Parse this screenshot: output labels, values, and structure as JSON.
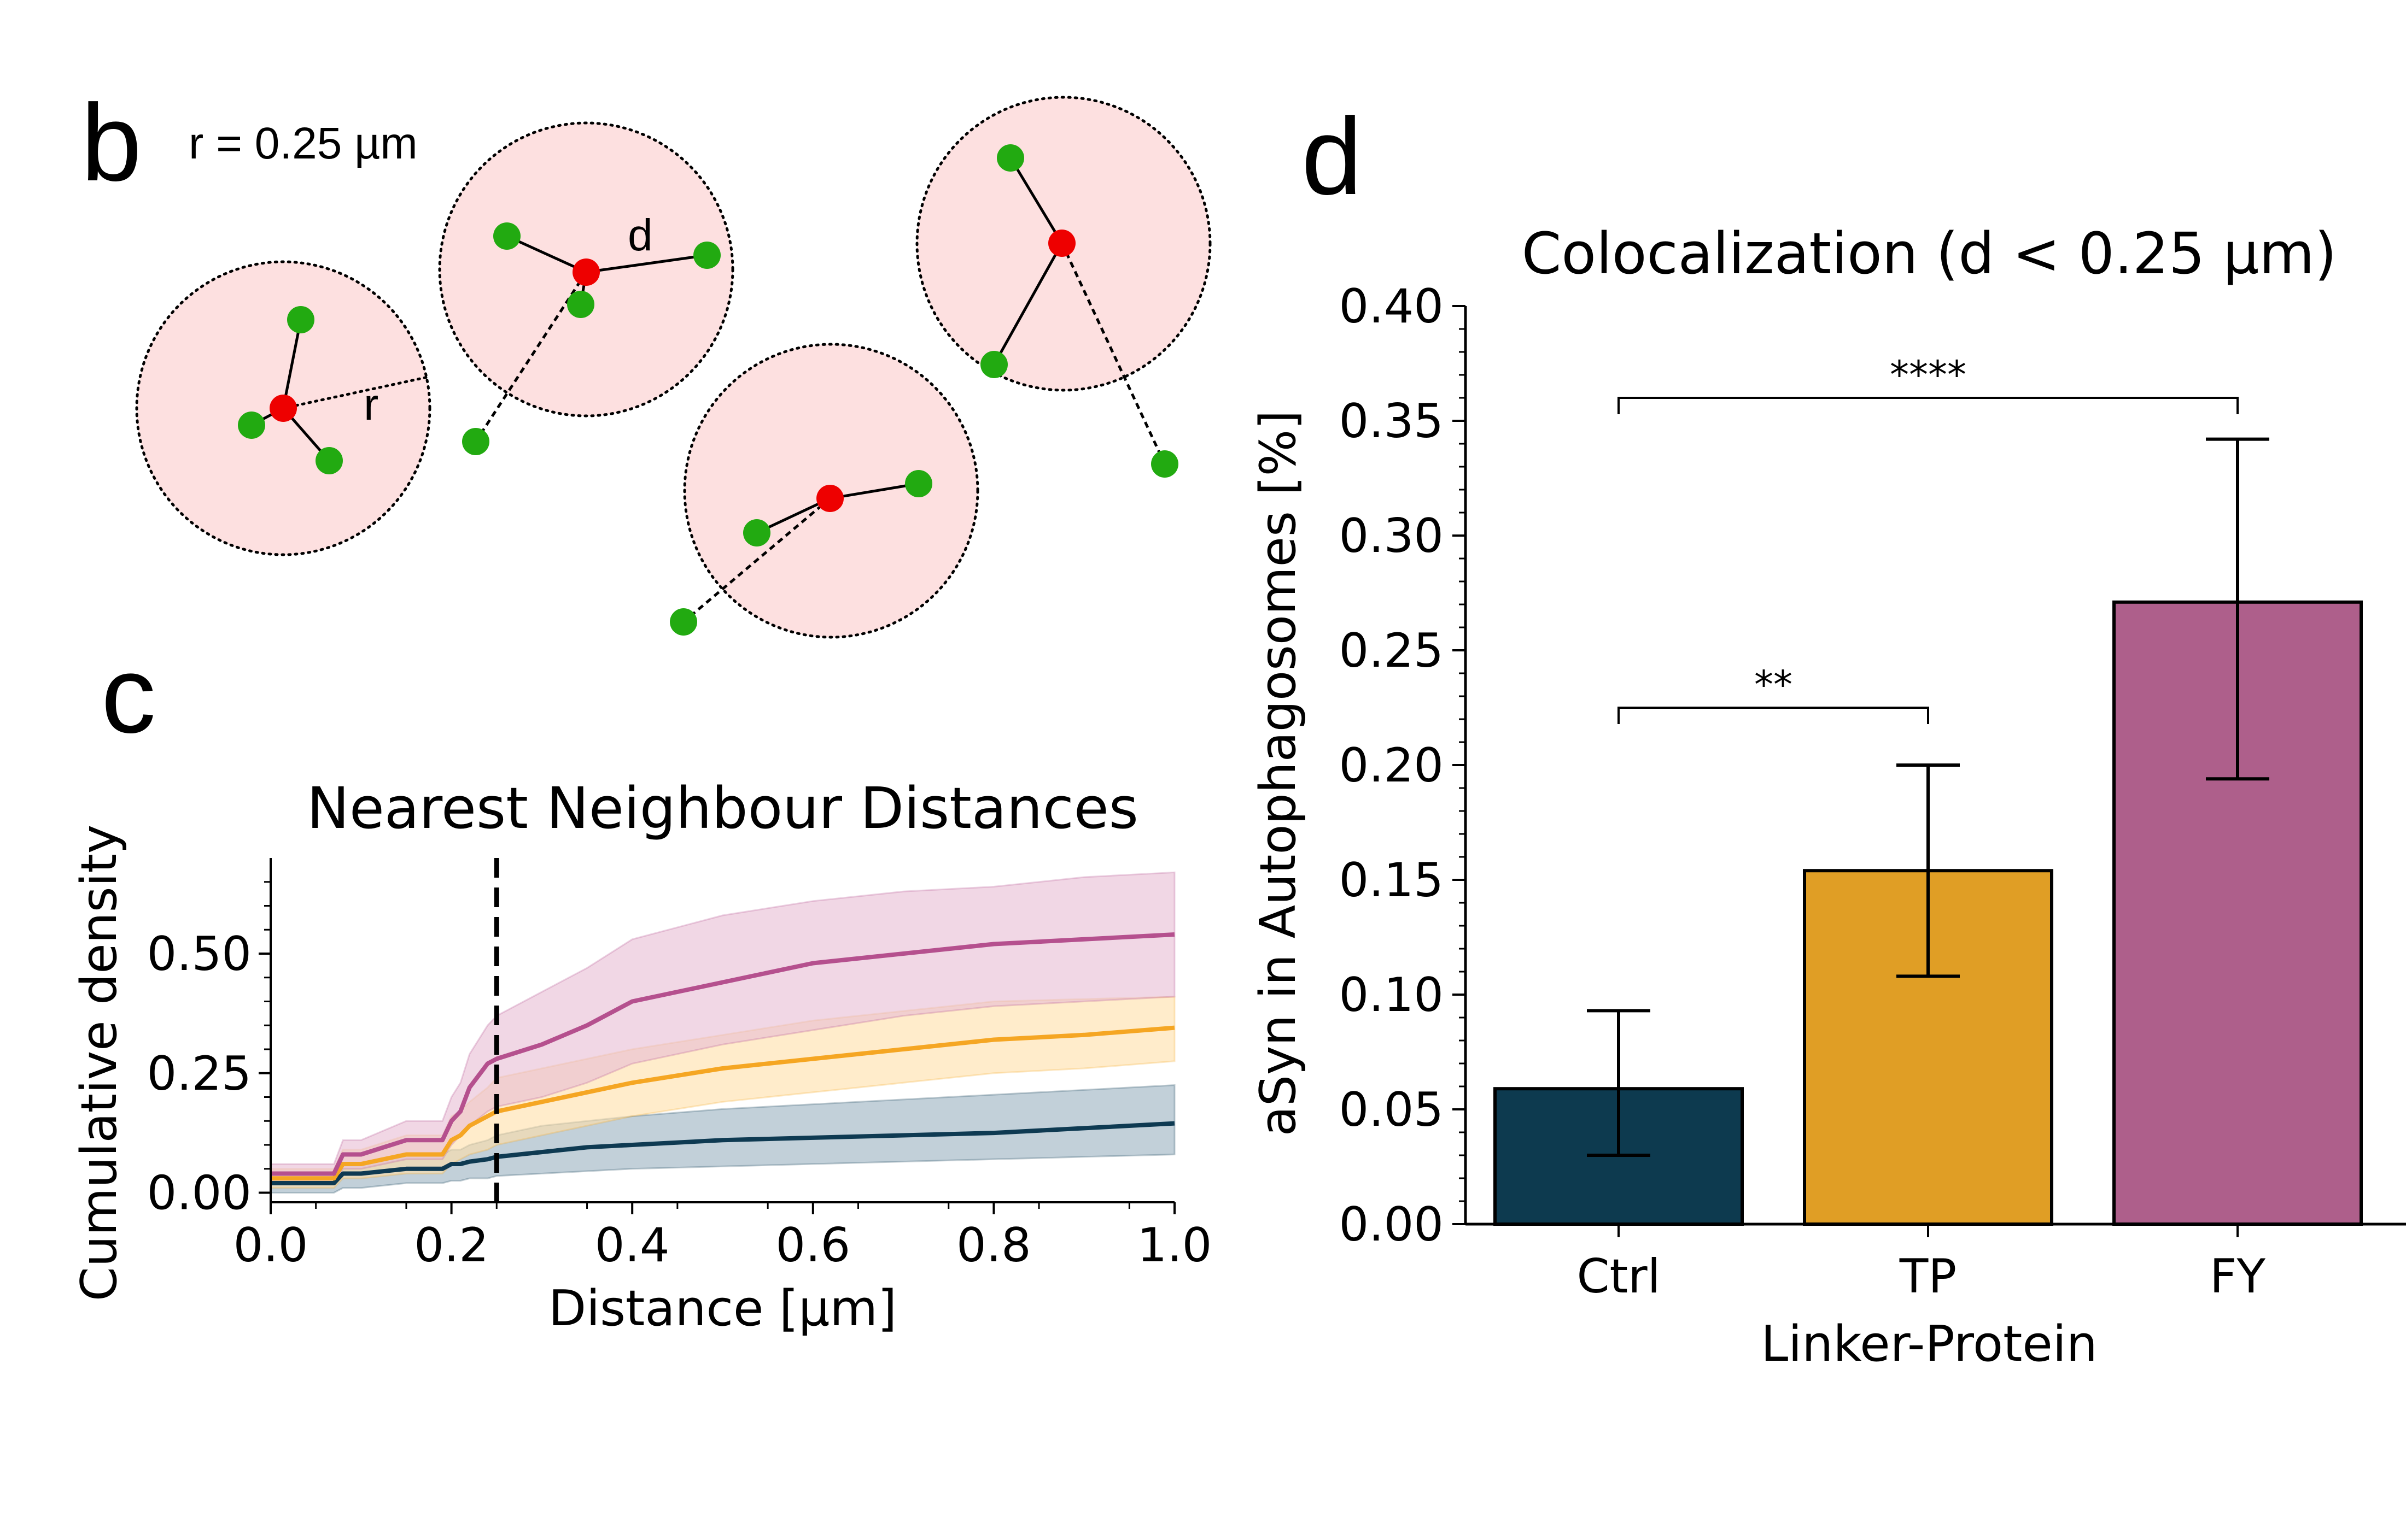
{
  "panels": {
    "b": {
      "letter": "b",
      "radius_label": "r = 0.25 µm",
      "d_label": "d",
      "r_label": "r",
      "colors": {
        "circle_fill": "#fde0e0",
        "center": "#ee0000",
        "neighbor": "#22aa11"
      }
    },
    "c": {
      "letter": "c"
    },
    "d": {
      "letter": "d"
    }
  },
  "chart_data": [
    {
      "id": "nearest-neighbour",
      "type": "line",
      "title": "Nearest Neighbour Distances",
      "xlabel": "Distance [µm]",
      "ylabel": "Cumulative density",
      "xlim": [
        0,
        1
      ],
      "ylim": [
        -0.02,
        0.7
      ],
      "xticks": [
        0,
        0.2,
        0.4,
        0.6,
        0.8,
        1
      ],
      "xtick_labels": [
        "0.0",
        "0.2",
        "0.4",
        "0.6",
        "0.8",
        "1.0"
      ],
      "yticks": [
        0,
        0.25,
        0.5
      ],
      "ytick_labels": [
        "0.00",
        "0.25",
        "0.50"
      ],
      "threshold": 0.25,
      "legend": false,
      "x": [
        0.0,
        0.07,
        0.08,
        0.1,
        0.15,
        0.19,
        0.2,
        0.21,
        0.22,
        0.24,
        0.25,
        0.3,
        0.35,
        0.4,
        0.5,
        0.6,
        0.7,
        0.8,
        0.9,
        1.0
      ],
      "series": [
        {
          "color": "#0e3a52",
          "band_color": "#9ab0c0",
          "values": [
            0.02,
            0.02,
            0.04,
            0.04,
            0.05,
            0.05,
            0.06,
            0.06,
            0.065,
            0.07,
            0.075,
            0.085,
            0.095,
            0.1,
            0.11,
            0.115,
            0.12,
            0.125,
            0.135,
            0.145
          ],
          "lower": [
            0.0,
            0.0,
            0.01,
            0.01,
            0.02,
            0.02,
            0.025,
            0.025,
            0.03,
            0.03,
            0.035,
            0.04,
            0.045,
            0.05,
            0.055,
            0.06,
            0.065,
            0.07,
            0.075,
            0.08
          ],
          "upper": [
            0.04,
            0.04,
            0.06,
            0.06,
            0.08,
            0.08,
            0.09,
            0.09,
            0.1,
            0.11,
            0.12,
            0.14,
            0.15,
            0.16,
            0.175,
            0.185,
            0.195,
            0.205,
            0.215,
            0.225
          ]
        },
        {
          "color": "#f5a623",
          "band_color": "#ffe0a8",
          "values": [
            0.03,
            0.03,
            0.06,
            0.06,
            0.08,
            0.08,
            0.11,
            0.12,
            0.14,
            0.16,
            0.17,
            0.19,
            0.21,
            0.23,
            0.26,
            0.28,
            0.3,
            0.32,
            0.33,
            0.345
          ],
          "lower": [
            0.01,
            0.01,
            0.03,
            0.03,
            0.04,
            0.04,
            0.06,
            0.07,
            0.08,
            0.09,
            0.1,
            0.12,
            0.14,
            0.16,
            0.19,
            0.21,
            0.23,
            0.25,
            0.26,
            0.275
          ],
          "upper": [
            0.05,
            0.05,
            0.09,
            0.09,
            0.12,
            0.12,
            0.16,
            0.17,
            0.19,
            0.22,
            0.24,
            0.26,
            0.28,
            0.3,
            0.33,
            0.36,
            0.38,
            0.4,
            0.405,
            0.41
          ]
        },
        {
          "color": "#b5508e",
          "band_color": "#e8bcd4",
          "values": [
            0.04,
            0.04,
            0.08,
            0.08,
            0.11,
            0.11,
            0.15,
            0.17,
            0.22,
            0.27,
            0.28,
            0.31,
            0.35,
            0.4,
            0.44,
            0.48,
            0.5,
            0.52,
            0.53,
            0.54
          ],
          "lower": [
            0.02,
            0.02,
            0.05,
            0.05,
            0.07,
            0.07,
            0.1,
            0.12,
            0.14,
            0.17,
            0.18,
            0.2,
            0.23,
            0.27,
            0.31,
            0.34,
            0.37,
            0.39,
            0.4,
            0.41
          ],
          "upper": [
            0.06,
            0.06,
            0.11,
            0.11,
            0.15,
            0.15,
            0.2,
            0.23,
            0.29,
            0.35,
            0.37,
            0.42,
            0.47,
            0.53,
            0.58,
            0.61,
            0.63,
            0.64,
            0.66,
            0.67
          ]
        }
      ]
    },
    {
      "id": "colocalization",
      "type": "bar",
      "title": "Colocalization (d < 0.25 µm)",
      "xlabel": "Linker-Protein",
      "ylabel": "aSyn in Autophagosomes [%]",
      "ylim": [
        0,
        0.4
      ],
      "yticks": [
        0,
        0.05,
        0.1,
        0.15,
        0.2,
        0.25,
        0.3,
        0.35,
        0.4
      ],
      "ytick_labels": [
        "0.00",
        "0.05",
        "0.10",
        "0.15",
        "0.20",
        "0.25",
        "0.30",
        "0.35",
        "0.40"
      ],
      "categories": [
        "Ctrl",
        "TP",
        "FY"
      ],
      "values": [
        0.059,
        0.154,
        0.271
      ],
      "errors_low": [
        0.03,
        0.108,
        0.194
      ],
      "errors_high": [
        0.093,
        0.2,
        0.342
      ],
      "colors": [
        "#0d3a4f",
        "#e09e25",
        "#ae5f8b"
      ],
      "significance": [
        {
          "from": "Ctrl",
          "to": "TP",
          "y": 0.225,
          "label": "**"
        },
        {
          "from": "Ctrl",
          "to": "FY",
          "y": 0.36,
          "label": "****"
        }
      ]
    }
  ]
}
